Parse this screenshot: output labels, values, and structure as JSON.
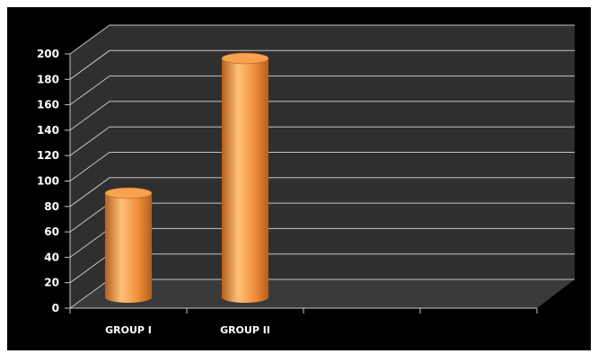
{
  "chart_data": {
    "type": "bar",
    "categories": [
      "GROUP I",
      "GROUP II",
      "",
      ""
    ],
    "values": [
      82,
      188,
      null,
      null
    ],
    "title": "",
    "xlabel": "",
    "ylabel": "",
    "ylim": [
      0,
      200
    ],
    "yticks": [
      0,
      20,
      40,
      60,
      80,
      100,
      120,
      140,
      160,
      180,
      200
    ],
    "ytick_labels": [
      "0",
      "20",
      "40",
      "60",
      "80",
      "100",
      "120",
      "140",
      "160",
      "180",
      "200"
    ],
    "grid": true,
    "legend": "none",
    "bar_shape": "cylinder",
    "projection": "3d",
    "colors": {
      "frame": "#000000",
      "panel": "#2f2f2f",
      "floor": "#3a3a3a",
      "grid": "#c4c4c4",
      "text": "#ffffff",
      "bar_light": "#ffc178",
      "bar_mid": "#f28f3b",
      "bar_dark": "#b45f1c",
      "bar_top": "#f7a24e"
    }
  }
}
